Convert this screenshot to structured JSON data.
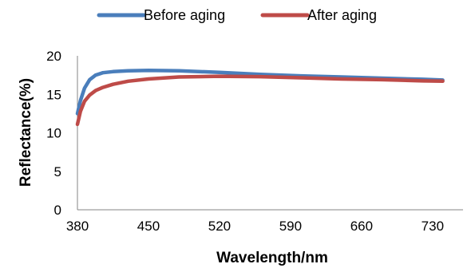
{
  "chart_data": {
    "type": "line",
    "title": "",
    "xlabel": "Wavelength/nm",
    "ylabel": "Reflectance(%)",
    "xlim": [
      380,
      760
    ],
    "ylim": [
      0,
      20
    ],
    "xticks": [
      "380",
      "450",
      "520",
      "590",
      "660",
      "730"
    ],
    "yticks": [
      "0",
      "5",
      "10",
      "15",
      "20"
    ],
    "grid": false,
    "legend": "top",
    "series": [
      {
        "name": "Before aging",
        "color": "#4a7ebb",
        "x": [
          380,
          383,
          387,
          392,
          398,
          405,
          415,
          430,
          450,
          480,
          520,
          560,
          600,
          640,
          680,
          720,
          740
        ],
        "y": [
          12.5,
          14.2,
          15.8,
          16.9,
          17.5,
          17.8,
          17.95,
          18.05,
          18.1,
          18.05,
          17.85,
          17.6,
          17.4,
          17.25,
          17.1,
          16.95,
          16.85
        ]
      },
      {
        "name": "After aging",
        "color": "#be4b48",
        "x": [
          380,
          383,
          387,
          392,
          398,
          405,
          415,
          430,
          450,
          480,
          520,
          560,
          600,
          640,
          680,
          720,
          740
        ],
        "y": [
          11.1,
          12.8,
          14.1,
          14.9,
          15.5,
          15.9,
          16.3,
          16.7,
          17.0,
          17.25,
          17.35,
          17.3,
          17.15,
          17.0,
          16.9,
          16.75,
          16.7
        ]
      }
    ]
  }
}
